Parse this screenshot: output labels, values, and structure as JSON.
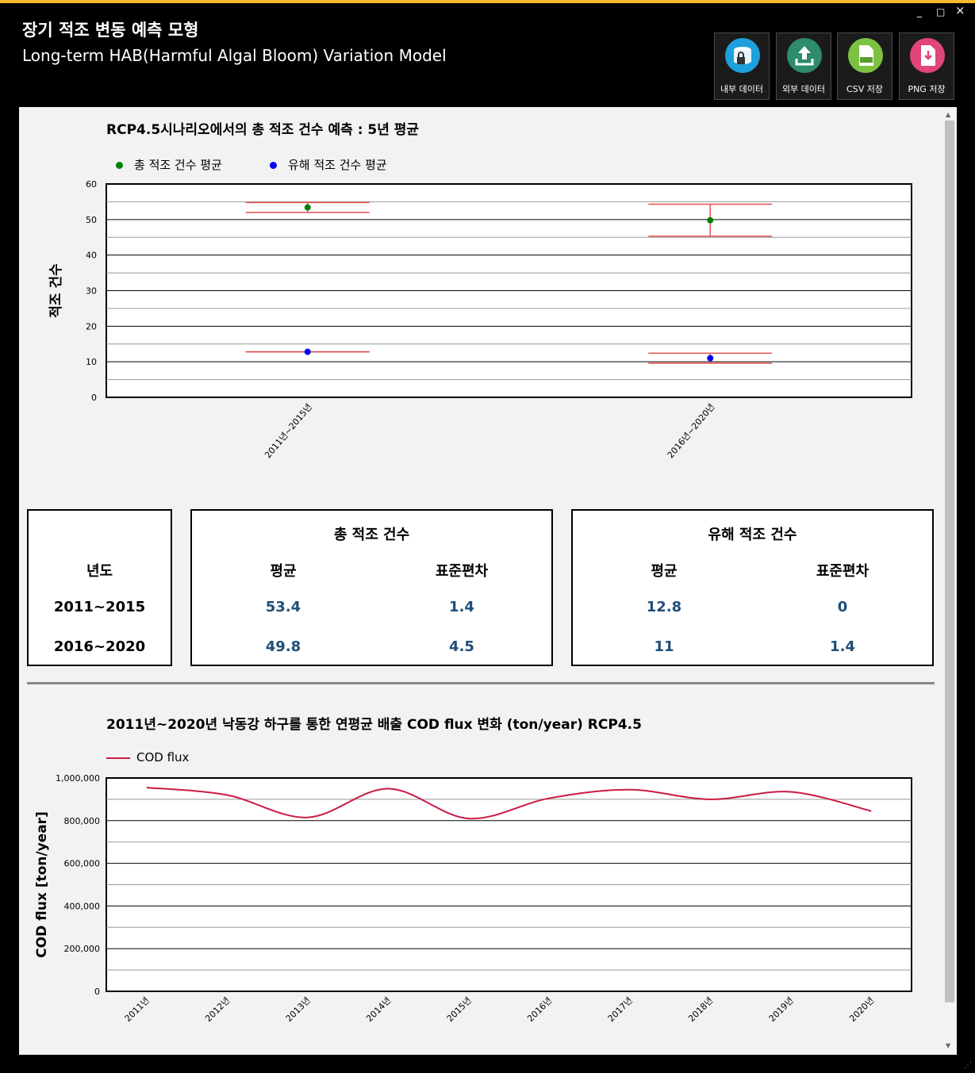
{
  "window": {
    "title_ko": "장기 적조 변동 예측 모형",
    "title_en": "Long-term HAB(Harmful Algal Bloom) Variation Model",
    "minimize": "_",
    "maximize": "□",
    "close": "×"
  },
  "toolbar": {
    "buttons": [
      {
        "label": "내부 데이터",
        "icon": "database-lock-icon",
        "color": "#1ea0dc"
      },
      {
        "label": "외부 데이터",
        "icon": "upload-icon",
        "color": "#2e8b6e"
      },
      {
        "label": "CSV 저장",
        "icon": "csv-file-icon",
        "color": "#7cc242"
      },
      {
        "label": "PNG 저장",
        "icon": "png-file-icon",
        "color": "#e0457b"
      }
    ]
  },
  "chart1": {
    "title": "RCP4.5시나리오에서의 총 적조 건수 예측 : 5년 평균",
    "legend": [
      "총 적조 건수 평균",
      "유해 적조 건수 평균"
    ],
    "ylabel": "적조 건수",
    "ytick_labels": [
      "60",
      "50",
      "40",
      "30",
      "20",
      "10",
      "0"
    ],
    "xtick_labels": [
      "2011년~2015년",
      "2016년~2020년"
    ]
  },
  "table": {
    "year_header": "년도",
    "years": [
      "2011~2015",
      "2016~2020"
    ],
    "total": {
      "title": "총 적조 건수",
      "mean_header": "평균",
      "sd_header": "표준편차",
      "rows": [
        {
          "mean": "53.4",
          "sd": "1.4"
        },
        {
          "mean": "49.8",
          "sd": "4.5"
        }
      ]
    },
    "harmful": {
      "title": "유해 적조 건수",
      "mean_header": "평균",
      "sd_header": "표준편차",
      "rows": [
        {
          "mean": "12.8",
          "sd": "0"
        },
        {
          "mean": "11",
          "sd": "1.4"
        }
      ]
    }
  },
  "chart2": {
    "title": "2011년~2020년 낙동강 하구를 통한 연평균 배출 COD flux 변화 (ton/year) RCP4.5",
    "legend": "COD flux",
    "ylabel": "COD flux [ton/year]",
    "ytick_labels": [
      "1,000,000",
      "800,000",
      "600,000",
      "400,000",
      "200,000",
      "0"
    ],
    "xtick_labels": [
      "2011년",
      "2012년",
      "2013년",
      "2014년",
      "2015년",
      "2016년",
      "2017년",
      "2018년",
      "2019년",
      "2020년"
    ]
  },
  "colors": {
    "total": "#008000",
    "harmful": "#0000ff",
    "errorbar": "#e05050",
    "cod": "#cc1a44",
    "accent": "#f5b82e"
  },
  "chart_data": [
    {
      "type": "scatter",
      "title": "RCP4.5시나리오에서의 총 적조 건수 예측 : 5년 평균",
      "categories": [
        "2011년~2015년",
        "2016년~2020년"
      ],
      "series": [
        {
          "name": "총 적조 건수 평균",
          "values": [
            53.4,
            49.8
          ],
          "error": [
            1.4,
            4.5
          ]
        },
        {
          "name": "유해 적조 건수 평균",
          "values": [
            12.8,
            11
          ],
          "error": [
            0,
            1.4
          ]
        }
      ],
      "ylabel": "적조 건수",
      "ylim": [
        0,
        60
      ],
      "grid": true,
      "legend": "top-left"
    },
    {
      "type": "line",
      "title": "2011년~2020년 낙동강 하구를 통한 연평균 배출 COD flux 변화 (ton/year) RCP4.5",
      "categories": [
        "2011년",
        "2012년",
        "2013년",
        "2014년",
        "2015년",
        "2016년",
        "2017년",
        "2018년",
        "2019년",
        "2020년"
      ],
      "series": [
        {
          "name": "COD flux",
          "values": [
            955000,
            920000,
            815000,
            950000,
            810000,
            905000,
            945000,
            900000,
            935000,
            845000
          ]
        }
      ],
      "ylabel": "COD flux [ton/year]",
      "ylim": [
        0,
        1000000
      ],
      "grid": true,
      "legend": "top-left"
    }
  ]
}
